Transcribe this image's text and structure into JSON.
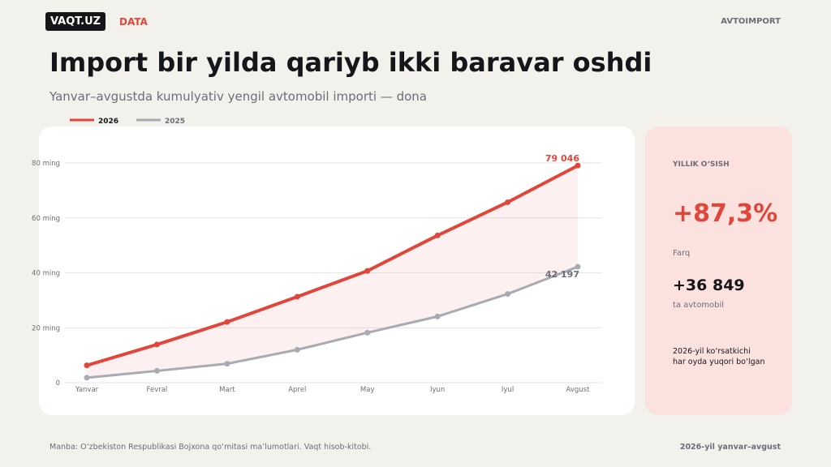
{
  "header": {
    "brand": "VAQT.UZ",
    "section": "DATA",
    "tag": "AVTOIMPORT"
  },
  "chart_data": {
    "type": "line",
    "title": "Import bir yilda qariyb ikki baravar oshdi",
    "subtitle": "Yanvar–avgustda kumulyativ yengil avtomobil importi — dona",
    "categories": [
      "Yanvar",
      "Fevral",
      "Mart",
      "Aprel",
      "May",
      "Iyun",
      "Iyul",
      "Avgust"
    ],
    "series": [
      {
        "name": "2026",
        "color": "#e0463a",
        "values": [
          6300,
          13900,
          22100,
          31300,
          40700,
          53600,
          65700,
          79046
        ],
        "value_labels": [
          null,
          null,
          null,
          null,
          null,
          null,
          null,
          "79 046"
        ]
      },
      {
        "name": "2025",
        "color": "#a9abb3",
        "values": [
          1800,
          4300,
          6900,
          12000,
          18200,
          24100,
          32300,
          42197
        ],
        "value_labels": [
          null,
          null,
          null,
          null,
          null,
          null,
          null,
          "42 197"
        ]
      }
    ],
    "ylim": [
      0,
      80000
    ],
    "yticks": [
      0,
      {
        "value": 20000,
        "label": "20 ming"
      },
      {
        "value": 40000,
        "label": "40 ming"
      },
      {
        "value": 60000,
        "label": "60 ming"
      },
      {
        "value": 80000,
        "label": "80 ming"
      }
    ],
    "grid": true
  },
  "side": {
    "label": "YILLIK O‘SISH",
    "value": "+87,3%",
    "diff_label": "Farq",
    "diff": "+36 849",
    "diff_unit": "ta avtomobil",
    "note": [
      "2026-yil ko‘rsatkichi",
      "har oyda yuqori bo‘lgan"
    ]
  },
  "footer": {
    "source": "Manba: O‘zbekiston Respublikasi Bojxona qo‘mitasi ma’lumotlari. Vaqt hisob-kitobi.",
    "period": "2026-yil yanvar–avgust"
  }
}
